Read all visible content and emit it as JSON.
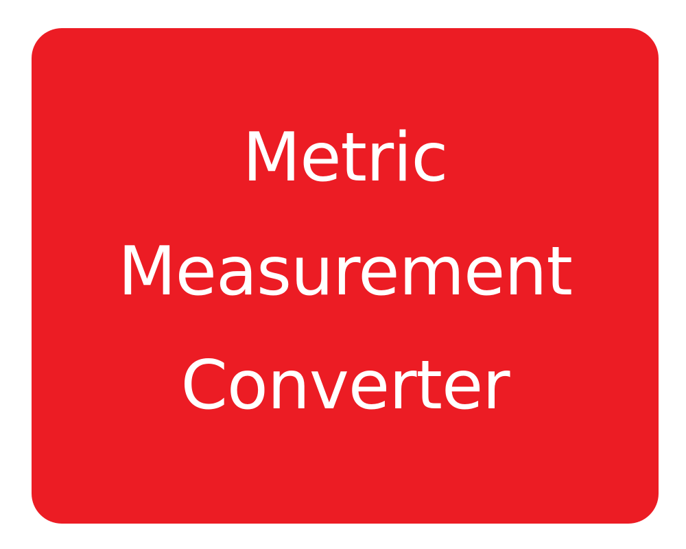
{
  "tile": {
    "background_color": "#ec1c24",
    "text_color": "#ffffff",
    "title_lines": [
      "Metric",
      "Measurement",
      "Converter"
    ]
  }
}
